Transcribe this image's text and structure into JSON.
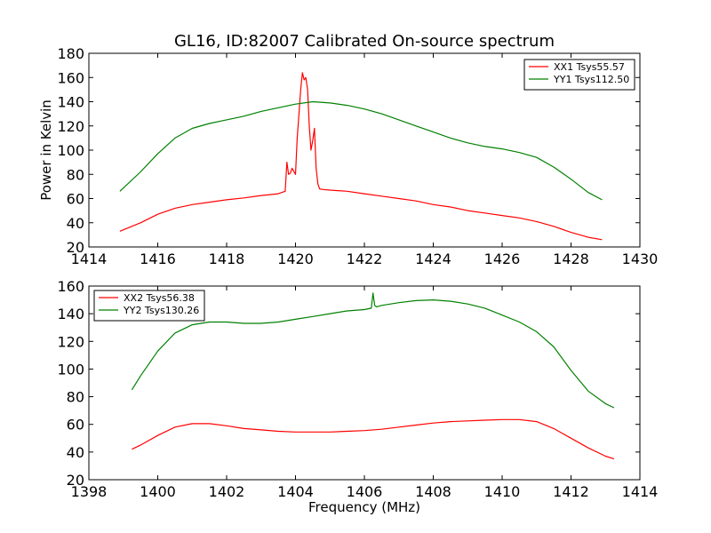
{
  "figure": {
    "title": "GL16, ID:82007 Calibrated On-source spectrum",
    "ylabel": "Power in Kelvin",
    "xlabel": "Frequency (MHz)"
  },
  "colors": {
    "xx": "#ff0000",
    "yy": "#008000"
  },
  "chart_data": [
    {
      "type": "line",
      "title": "GL16, ID:82007 Calibrated On-source spectrum",
      "ylabel": "Power in Kelvin",
      "xlabel": "",
      "xlim": [
        1414,
        1430
      ],
      "ylim": [
        20,
        180
      ],
      "xticks": [
        1414,
        1416,
        1418,
        1420,
        1422,
        1424,
        1426,
        1428,
        1430
      ],
      "yticks": [
        20,
        40,
        60,
        80,
        100,
        120,
        140,
        160,
        180
      ],
      "legend": "top-right",
      "grid": false,
      "series": [
        {
          "name": "XX1 Tsys55.57",
          "color": "#ff0000",
          "x": [
            1414.9,
            1415.5,
            1416.0,
            1416.5,
            1417.0,
            1417.5,
            1418.0,
            1418.5,
            1419.0,
            1419.5,
            1419.7,
            1419.75,
            1419.8,
            1419.85,
            1419.9,
            1420.0,
            1420.05,
            1420.1,
            1420.15,
            1420.2,
            1420.25,
            1420.3,
            1420.35,
            1420.4,
            1420.45,
            1420.5,
            1420.55,
            1420.6,
            1420.65,
            1420.7,
            1420.8,
            1421.0,
            1421.5,
            1422.0,
            1422.5,
            1423.0,
            1423.5,
            1424.0,
            1424.5,
            1425.0,
            1425.5,
            1426.0,
            1426.5,
            1427.0,
            1427.5,
            1428.0,
            1428.5,
            1428.9
          ],
          "y": [
            33,
            40,
            47,
            52,
            55,
            57,
            59,
            60.5,
            62.5,
            64,
            66,
            90,
            80,
            81,
            85,
            80,
            110,
            130,
            150,
            164,
            158,
            160,
            150,
            120,
            100,
            108,
            118,
            85,
            72,
            68,
            67.5,
            67,
            66,
            64,
            62,
            60,
            58,
            55,
            53,
            50,
            48,
            46,
            44,
            41,
            37,
            32,
            28,
            26
          ]
        },
        {
          "name": "YY1 Tsys112.50",
          "color": "#008000",
          "x": [
            1414.9,
            1415.5,
            1416.0,
            1416.5,
            1417.0,
            1417.5,
            1418.0,
            1418.5,
            1419.0,
            1419.5,
            1420.0,
            1420.5,
            1421.0,
            1421.5,
            1422.0,
            1422.5,
            1423.0,
            1423.5,
            1424.0,
            1424.5,
            1425.0,
            1425.5,
            1426.0,
            1426.5,
            1427.0,
            1427.5,
            1428.0,
            1428.5,
            1428.9
          ],
          "y": [
            66,
            82,
            97,
            110,
            118,
            122,
            125,
            128,
            132,
            135,
            138,
            140,
            139,
            137,
            134,
            130,
            125,
            120,
            115,
            110,
            106,
            103,
            101,
            98,
            94,
            86,
            76,
            65,
            59
          ]
        }
      ]
    },
    {
      "type": "line",
      "title": "",
      "ylabel": "",
      "xlabel": "Frequency (MHz)",
      "xlim": [
        1398,
        1414
      ],
      "ylim": [
        20,
        160
      ],
      "xticks": [
        1398,
        1400,
        1402,
        1404,
        1406,
        1408,
        1410,
        1412,
        1414
      ],
      "yticks": [
        20,
        40,
        60,
        80,
        100,
        120,
        140,
        160
      ],
      "legend": "top-left",
      "grid": false,
      "series": [
        {
          "name": "XX2 Tsys56.38",
          "color": "#ff0000",
          "x": [
            1399.25,
            1399.5,
            1400.0,
            1400.5,
            1401.0,
            1401.5,
            1402.0,
            1402.5,
            1403.0,
            1403.5,
            1404.0,
            1404.5,
            1405.0,
            1405.5,
            1406.0,
            1406.5,
            1407.0,
            1407.5,
            1408.0,
            1408.5,
            1409.0,
            1409.5,
            1410.0,
            1410.5,
            1411.0,
            1411.5,
            1412.0,
            1412.5,
            1413.0,
            1413.25
          ],
          "y": [
            42,
            45,
            52,
            58,
            60.5,
            60.5,
            59,
            57,
            56,
            55,
            54.5,
            54.5,
            54.5,
            55,
            55.5,
            56.5,
            58,
            59.5,
            61,
            62,
            62.5,
            63,
            63.5,
            63.5,
            62,
            57,
            50,
            43,
            37,
            35
          ]
        },
        {
          "name": "YY2 Tsys130.26",
          "color": "#008000",
          "x": [
            1399.25,
            1399.5,
            1400.0,
            1400.5,
            1401.0,
            1401.5,
            1402.0,
            1402.5,
            1403.0,
            1403.5,
            1404.0,
            1404.5,
            1405.0,
            1405.5,
            1406.0,
            1406.2,
            1406.25,
            1406.3,
            1406.35,
            1406.5,
            1407.0,
            1407.5,
            1408.0,
            1408.5,
            1409.0,
            1409.5,
            1410.0,
            1410.5,
            1411.0,
            1411.5,
            1412.0,
            1412.5,
            1413.0,
            1413.25
          ],
          "y": [
            85,
            95,
            113,
            126,
            132,
            134,
            134,
            133,
            133,
            134,
            136,
            138,
            140,
            142,
            143,
            144,
            155,
            146,
            145,
            146,
            148,
            149.5,
            150,
            149,
            147,
            144,
            139,
            134,
            127,
            116,
            99,
            84,
            75,
            72
          ]
        }
      ]
    }
  ]
}
